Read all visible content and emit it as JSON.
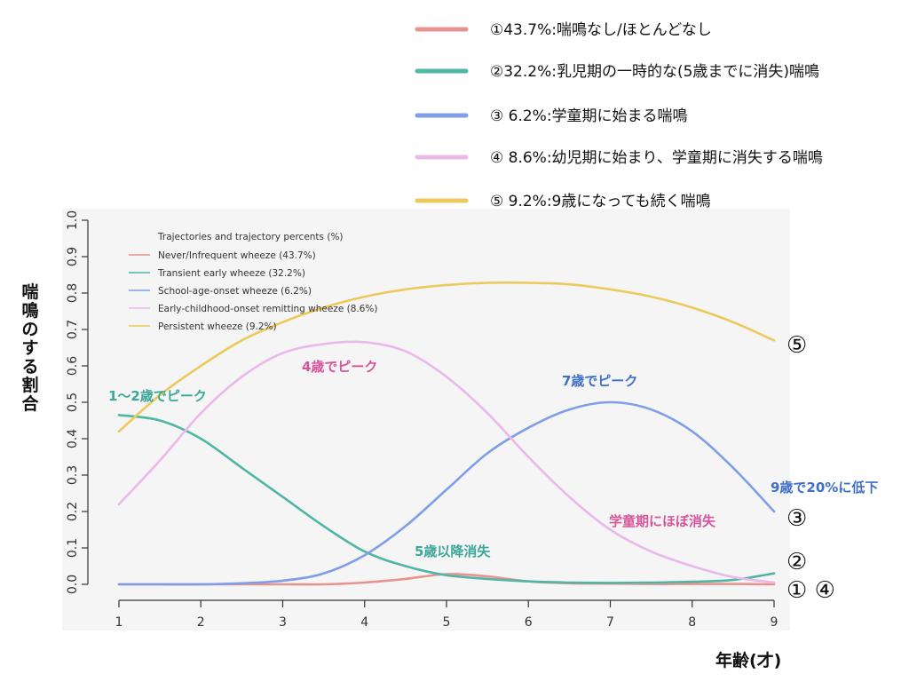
{
  "top_legend": [
    {
      "label": "①43.7%:喘鳴なし/ほとんどなし",
      "color": "#e8948e"
    },
    {
      "label": "②32.2%:乳児期の一時的な(5歳までに消失)喘鳴",
      "color": "#4fb5a5"
    },
    {
      "label": "③ 6.2%:学童期に始まる喘鳴",
      "color": "#7f9ee8"
    },
    {
      "label": "④ 8.6%:幼児期に始まり、学童期に消失する喘鳴",
      "color": "#eab8ea"
    },
    {
      "label": "⑤ 9.2%:9歳になっても続く喘鳴",
      "color": "#edc85a"
    }
  ],
  "inner_legend": {
    "title": "Trajectories and trajectory percents (%)",
    "items": [
      "Never/Infrequent wheeze (43.7%)",
      "Transient early wheeze (32.2%)",
      "School-age-onset wheeze (6.2%)",
      "Early-childhood-onset remitting wheeze (8.6%)",
      "Persistent wheeze (9.2%)"
    ]
  },
  "annotations": [
    {
      "text": "1〜2歳でピーク",
      "color": "#3aa79a"
    },
    {
      "text": "4歳でピーク",
      "color": "#d6559c"
    },
    {
      "text": "7歳でピーク",
      "color": "#3f6fc8"
    },
    {
      "text": "9歳で20%に低下",
      "color": "#3f6fc8"
    },
    {
      "text": "学童期にほぼ消失",
      "color": "#d6559c"
    },
    {
      "text": "5歳以降消失",
      "color": "#3aa79a"
    }
  ],
  "end_markers": [
    "⑤",
    "③",
    "②",
    "① ④"
  ],
  "chart_data": {
    "type": "line",
    "xlabel": "年齢(才)",
    "ylabel": "喘鳴のする割合",
    "x": [
      1,
      1.5,
      2,
      2.5,
      3,
      3.5,
      4,
      4.5,
      5,
      5.5,
      6,
      6.5,
      7,
      7.5,
      8,
      8.5,
      9
    ],
    "xlim": [
      1,
      9
    ],
    "ylim": [
      0,
      1
    ],
    "xticks": [
      "1",
      "2",
      "3",
      "4",
      "5",
      "6",
      "7",
      "8",
      "9"
    ],
    "yticks": [
      "0.0",
      "0.1",
      "0.2",
      "0.3",
      "0.4",
      "0.5",
      "0.6",
      "0.7",
      "0.8",
      "0.9",
      "1.0"
    ],
    "grid": false,
    "series": [
      {
        "name": "Never/Infrequent wheeze (43.7%)",
        "color": "#e8948e",
        "values": [
          0.0,
          0.0,
          0.0,
          0.0,
          0.0,
          0.0,
          0.005,
          0.015,
          0.028,
          0.022,
          0.008,
          0.003,
          0.002,
          0.001,
          0.001,
          0.001,
          0.0
        ]
      },
      {
        "name": "Transient early wheeze (32.2%)",
        "color": "#4fb5a5",
        "values": [
          0.465,
          0.45,
          0.4,
          0.32,
          0.24,
          0.16,
          0.09,
          0.05,
          0.025,
          0.015,
          0.008,
          0.005,
          0.004,
          0.005,
          0.007,
          0.012,
          0.03
        ]
      },
      {
        "name": "School-age-onset wheeze (6.2%)",
        "color": "#7f9ee8",
        "values": [
          0.0,
          0.0,
          0.0,
          0.003,
          0.01,
          0.03,
          0.08,
          0.16,
          0.26,
          0.36,
          0.43,
          0.48,
          0.5,
          0.48,
          0.42,
          0.32,
          0.2
        ]
      },
      {
        "name": "Early-childhood-onset remitting wheeze (8.6%)",
        "color": "#eab8ea",
        "values": [
          0.22,
          0.34,
          0.47,
          0.57,
          0.635,
          0.66,
          0.665,
          0.64,
          0.57,
          0.47,
          0.35,
          0.24,
          0.15,
          0.09,
          0.05,
          0.02,
          0.005
        ]
      },
      {
        "name": "Persistent wheeze (9.2%)",
        "color": "#edc85a",
        "values": [
          0.42,
          0.52,
          0.6,
          0.67,
          0.72,
          0.76,
          0.79,
          0.81,
          0.822,
          0.828,
          0.828,
          0.824,
          0.81,
          0.79,
          0.76,
          0.72,
          0.67
        ]
      }
    ]
  }
}
